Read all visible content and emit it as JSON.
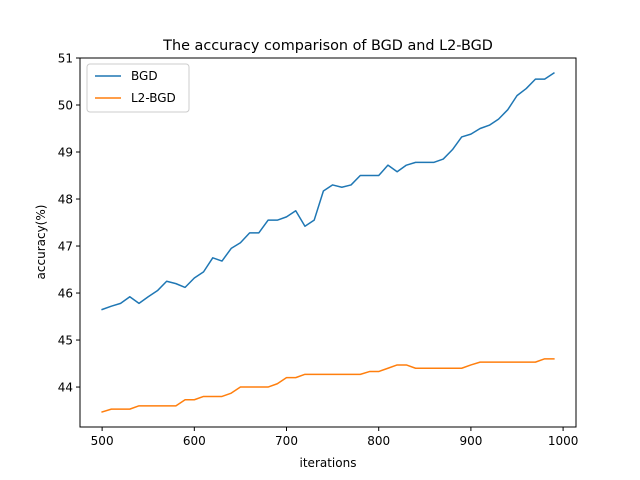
{
  "chart_data": {
    "type": "line",
    "title": "The accuracy comparison of BGD and L2-BGD",
    "xlabel": "iterations",
    "ylabel": "accuracy(%)",
    "xlim": [
      476,
      1014
    ],
    "ylim": [
      43.15,
      51.0
    ],
    "xticks": [
      500,
      600,
      700,
      800,
      900,
      1000
    ],
    "yticks": [
      44,
      45,
      46,
      47,
      48,
      49,
      50,
      51
    ],
    "legend": "top-left",
    "grid": false,
    "x": [
      500,
      510,
      520,
      530,
      540,
      550,
      560,
      570,
      580,
      590,
      600,
      610,
      620,
      630,
      640,
      650,
      660,
      670,
      680,
      690,
      700,
      710,
      720,
      730,
      740,
      750,
      760,
      770,
      780,
      790,
      800,
      810,
      820,
      830,
      840,
      850,
      860,
      870,
      880,
      890,
      900,
      910,
      920,
      930,
      940,
      950,
      960,
      970,
      980,
      990
    ],
    "series": [
      {
        "name": "BGD",
        "color": "#1f77b4",
        "values": [
          45.65,
          45.72,
          45.78,
          45.92,
          45.78,
          45.92,
          46.05,
          46.25,
          46.2,
          46.12,
          46.32,
          46.45,
          46.75,
          46.68,
          46.95,
          47.07,
          47.28,
          47.28,
          47.55,
          47.55,
          47.62,
          47.75,
          47.42,
          47.55,
          48.17,
          48.3,
          48.25,
          48.3,
          48.5,
          48.5,
          48.5,
          48.72,
          48.58,
          48.72,
          48.78,
          48.78,
          48.78,
          48.85,
          49.05,
          49.32,
          49.38,
          49.5,
          49.57,
          49.7,
          49.9,
          50.2,
          50.35,
          50.55,
          50.55,
          50.68
        ]
      },
      {
        "name": "L2-BGD",
        "color": "#ff7f0e",
        "values": [
          43.47,
          43.53,
          43.53,
          43.53,
          43.6,
          43.6,
          43.6,
          43.6,
          43.6,
          43.73,
          43.73,
          43.8,
          43.8,
          43.8,
          43.87,
          44.0,
          44.0,
          44.0,
          44.0,
          44.07,
          44.2,
          44.2,
          44.27,
          44.27,
          44.27,
          44.27,
          44.27,
          44.27,
          44.27,
          44.33,
          44.33,
          44.4,
          44.47,
          44.47,
          44.4,
          44.4,
          44.4,
          44.4,
          44.4,
          44.4,
          44.47,
          44.53,
          44.53,
          44.53,
          44.53,
          44.53,
          44.53,
          44.53,
          44.6,
          44.6
        ]
      }
    ]
  }
}
